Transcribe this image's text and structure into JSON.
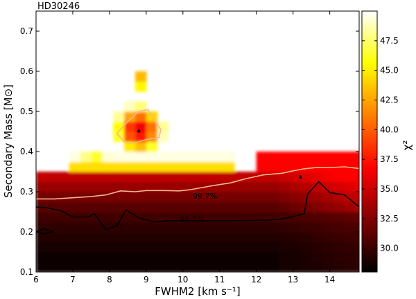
{
  "chart_data": {
    "type": "heatmap",
    "title": "HD30246",
    "xlabel": "FWHM2 [km s⁻¹]",
    "ylabel": "Secondary Mass [M⊙]",
    "colorbar_label": "χ²",
    "xlim": [
      6.0,
      14.8
    ],
    "ylim": [
      0.1,
      0.75
    ],
    "x_ticks": [
      6,
      7,
      8,
      9,
      10,
      11,
      12,
      13,
      14
    ],
    "x_tick_labels": [
      "6",
      "7",
      "8",
      "9",
      "10",
      "11",
      "12",
      "13",
      "14"
    ],
    "y_ticks": [
      0.1,
      0.2,
      0.3,
      0.4,
      0.5,
      0.6,
      0.7
    ],
    "y_tick_labels": [
      "0.1",
      "0.2",
      "0.3",
      "0.4",
      "0.5",
      "0.6",
      "0.7"
    ],
    "colorbar_range": [
      28.0,
      50.0
    ],
    "colorbar_ticks": [
      30.0,
      32.5,
      35.0,
      37.5,
      40.0,
      42.5,
      45.0,
      47.5
    ],
    "colorbar_tick_labels": [
      "30.0",
      "32.5",
      "35.0",
      "37.5",
      "40.0",
      "42.5",
      "45.0",
      "47.5"
    ],
    "colormap": "hot (reversed)",
    "colors": {
      "low": "#000000",
      "mid": "#e8200a",
      "high": "#ffffff"
    },
    "contours": [
      {
        "label": "99.7%",
        "label_pos": [
          10.6,
          0.29
        ],
        "color": "#f2b890",
        "points": [
          [
            6.0,
            0.282
          ],
          [
            6.5,
            0.282
          ],
          [
            7.0,
            0.285
          ],
          [
            7.5,
            0.288
          ],
          [
            7.9,
            0.292
          ],
          [
            8.3,
            0.302
          ],
          [
            8.7,
            0.3
          ],
          [
            9.0,
            0.303
          ],
          [
            9.5,
            0.303
          ],
          [
            9.9,
            0.302
          ],
          [
            10.2,
            0.305
          ],
          [
            10.8,
            0.315
          ],
          [
            11.3,
            0.322
          ],
          [
            11.7,
            0.332
          ],
          [
            12.2,
            0.342
          ],
          [
            12.7,
            0.346
          ],
          [
            13.0,
            0.352
          ],
          [
            13.3,
            0.357
          ],
          [
            13.6,
            0.36
          ],
          [
            14.0,
            0.36
          ],
          [
            14.4,
            0.362
          ],
          [
            14.8,
            0.358
          ]
        ]
      },
      {
        "label": "95.5%",
        "label_pos": [
          10.25,
          0.232
        ],
        "color": "#000000",
        "points": [
          [
            6.0,
            0.262
          ],
          [
            6.3,
            0.26
          ],
          [
            6.7,
            0.252
          ],
          [
            7.0,
            0.237
          ],
          [
            7.4,
            0.237
          ],
          [
            7.6,
            0.245
          ],
          [
            7.9,
            0.205
          ],
          [
            8.2,
            0.215
          ],
          [
            8.45,
            0.255
          ],
          [
            8.8,
            0.235
          ],
          [
            9.2,
            0.225
          ],
          [
            9.7,
            0.228
          ],
          [
            10.1,
            0.228
          ],
          [
            10.8,
            0.228
          ],
          [
            11.5,
            0.228
          ],
          [
            12.3,
            0.229
          ],
          [
            12.7,
            0.232
          ],
          [
            13.0,
            0.238
          ],
          [
            13.3,
            0.245
          ],
          [
            13.4,
            0.295
          ],
          [
            13.7,
            0.325
          ],
          [
            14.0,
            0.298
          ],
          [
            14.4,
            0.292
          ],
          [
            14.8,
            0.262
          ]
        ]
      },
      {
        "label": "",
        "color": "#f2b890",
        "points": [
          [
            8.2,
            0.445
          ],
          [
            8.5,
            0.475
          ],
          [
            8.8,
            0.5
          ],
          [
            9.05,
            0.505
          ],
          [
            9.2,
            0.48
          ],
          [
            9.4,
            0.455
          ],
          [
            9.35,
            0.435
          ],
          [
            9.0,
            0.43
          ],
          [
            8.7,
            0.422
          ],
          [
            8.4,
            0.425
          ],
          [
            8.2,
            0.445
          ]
        ]
      },
      {
        "label": "",
        "color": "#000000",
        "points": [
          [
            6.0,
            0.2
          ],
          [
            6.2,
            0.208
          ],
          [
            6.45,
            0.2
          ],
          [
            6.2,
            0.195
          ],
          [
            6.0,
            0.2
          ]
        ]
      }
    ],
    "markers": [
      {
        "x": 8.8,
        "y": 0.452
      },
      {
        "x": 13.2,
        "y": 0.337
      }
    ]
  }
}
